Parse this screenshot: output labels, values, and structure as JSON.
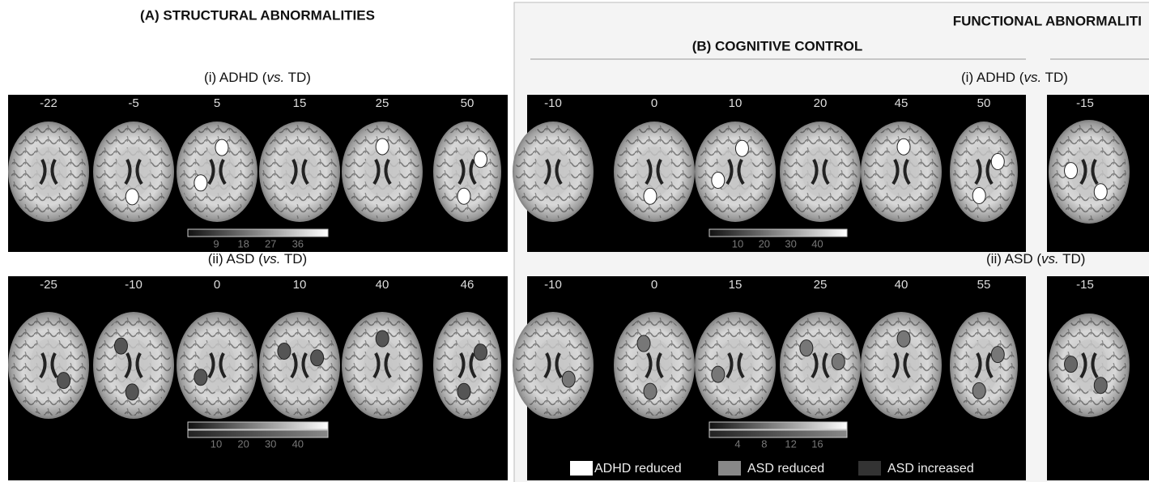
{
  "panel_a": {
    "title": "(A) STRUCTURAL ABNORMALITIES",
    "rows": [
      {
        "label": {
          "prefix": "(i) ADHD (",
          "italic": "vs.",
          "suffix": " TD)"
        },
        "slices": [
          -22,
          -5,
          5,
          15,
          25,
          50
        ],
        "colorbar_ticks": [
          9,
          18,
          27,
          36
        ]
      },
      {
        "label": {
          "prefix": "(ii) ASD (",
          "italic": "vs.",
          "suffix": " TD)"
        },
        "slices": [
          -25,
          -10,
          0,
          10,
          40,
          46
        ],
        "colorbar_ticks": [
          10,
          20,
          30,
          40
        ]
      }
    ]
  },
  "panel_functional": {
    "title": "FUNCTIONAL ABNORMALITI",
    "panel_b": {
      "title": "(B) COGNITIVE CONTROL",
      "rows": [
        {
          "label": {
            "prefix": "(i)  ADHD (",
            "italic": "vs.",
            "suffix": " TD)"
          },
          "slices": [
            -10,
            0,
            10,
            20,
            45,
            50
          ],
          "colorbar_ticks": [
            10,
            20,
            30,
            40
          ]
        },
        {
          "label": {
            "prefix": "(ii) ASD (",
            "italic": "vs.",
            "suffix": " TD)"
          },
          "slices": [
            -10,
            0,
            15,
            25,
            40,
            55
          ],
          "colorbar_ticks": [
            4,
            8,
            12,
            16
          ]
        }
      ],
      "legend": [
        "ADHD reduced",
        "ASD reduced",
        "ASD increased"
      ]
    },
    "panel_c": {
      "rows": [
        {
          "slices": [
            -15
          ]
        },
        {
          "slices": [
            -15
          ]
        }
      ]
    }
  }
}
